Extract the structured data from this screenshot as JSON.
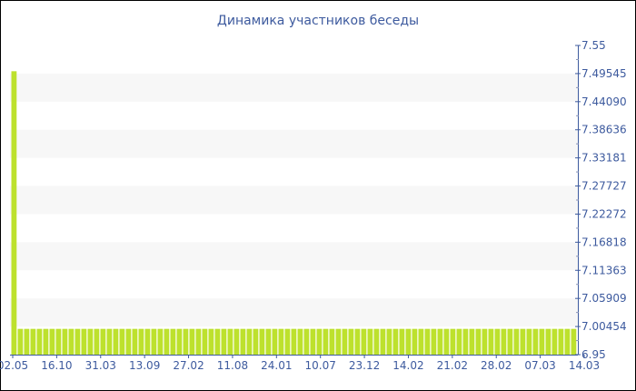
{
  "chart_data": {
    "type": "bar",
    "title": "Динамика участников беседы",
    "color": "#bde12d",
    "axis_color": "#3d5a9e",
    "band_color": "#f7f7f7",
    "ylim": [
      6.95,
      7.55
    ],
    "y_position": "right",
    "y_ticks": [
      "6.95",
      "7.00454",
      "7.05909",
      "7.11363",
      "7.16818",
      "7.22272",
      "7.27727",
      "7.33181",
      "7.38636",
      "7.44090",
      "7.49545",
      "7.55"
    ],
    "x_ticks": [
      "02.05",
      "16.10",
      "31.03",
      "13.09",
      "27.02",
      "11.08",
      "24.01",
      "10.07",
      "23.12",
      "14.02",
      "21.02",
      "28.02",
      "07.03",
      "14.03"
    ],
    "values": [
      7.5,
      7,
      7,
      7,
      7,
      7,
      7,
      7,
      7,
      7,
      7,
      7,
      7,
      7,
      7,
      7,
      7,
      7,
      7,
      7,
      7,
      7,
      7,
      7,
      7,
      7,
      7,
      7,
      7,
      7,
      7,
      7,
      7,
      7,
      7,
      7,
      7,
      7,
      7,
      7,
      7,
      7,
      7,
      7,
      7,
      7,
      7,
      7,
      7,
      7,
      7,
      7,
      7,
      7,
      7,
      7,
      7,
      7,
      7,
      7,
      7,
      7,
      7,
      7,
      7,
      7,
      7,
      7,
      7,
      7,
      7,
      7,
      7,
      7,
      7,
      7,
      7,
      7,
      7,
      7,
      7,
      7,
      7,
      7,
      7,
      7,
      7,
      7,
      7
    ]
  }
}
